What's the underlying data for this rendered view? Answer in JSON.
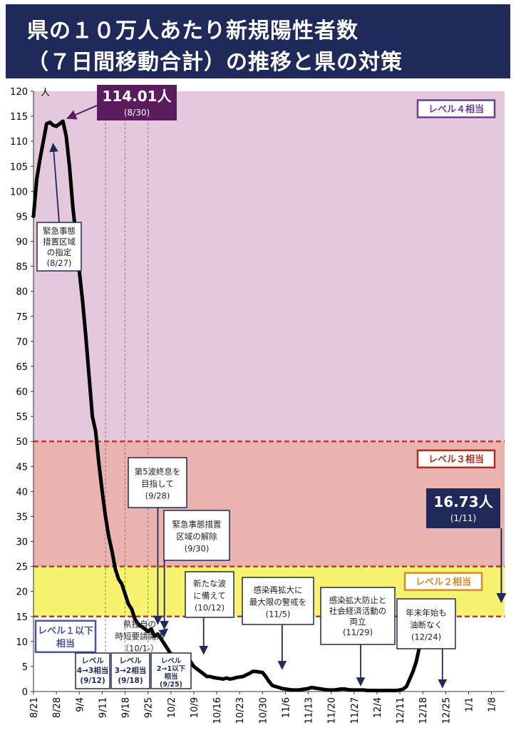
{
  "title": {
    "line1": "県の１０万人あたり新規陽性者数",
    "line2": "（７日間移動合計）の推移と県の対策"
  },
  "chart_data": {
    "type": "line",
    "y_unit": "人",
    "ylim": [
      0,
      120
    ],
    "y_ticks": [
      0,
      5,
      10,
      15,
      20,
      25,
      30,
      35,
      40,
      45,
      50,
      55,
      60,
      65,
      70,
      75,
      80,
      85,
      90,
      95,
      100,
      105,
      110,
      115,
      120
    ],
    "x_range": [
      "2021-08-21",
      "2022-01-12"
    ],
    "x_ticks": [
      {
        "date": "2021-08-21",
        "label": "8/21"
      },
      {
        "date": "2021-08-28",
        "label": "8/28"
      },
      {
        "date": "2021-09-04",
        "label": "9/4"
      },
      {
        "date": "2021-09-11",
        "label": "9/11"
      },
      {
        "date": "2021-09-18",
        "label": "9/18"
      },
      {
        "date": "2021-09-25",
        "label": "9/25"
      },
      {
        "date": "2021-10-02",
        "label": "10/2"
      },
      {
        "date": "2021-10-09",
        "label": "10/9"
      },
      {
        "date": "2021-10-16",
        "label": "10/16"
      },
      {
        "date": "2021-10-23",
        "label": "10/23"
      },
      {
        "date": "2021-10-30",
        "label": "10/30"
      },
      {
        "date": "2021-11-06",
        "label": "11/6"
      },
      {
        "date": "2021-11-13",
        "label": "11/13"
      },
      {
        "date": "2021-11-20",
        "label": "11/20"
      },
      {
        "date": "2021-11-27",
        "label": "11/27"
      },
      {
        "date": "2021-12-04",
        "label": "12/4"
      },
      {
        "date": "2021-12-11",
        "label": "12/11"
      },
      {
        "date": "2021-12-18",
        "label": "12/18"
      },
      {
        "date": "2021-12-25",
        "label": "12/25"
      },
      {
        "date": "2022-01-01",
        "label": "1/1"
      },
      {
        "date": "2022-01-08",
        "label": "1/8"
      }
    ],
    "bands": [
      {
        "label": "レベル４相当",
        "from": 50,
        "to": 120,
        "color": "#e4c9dc",
        "label_color": "#6a3d9a"
      },
      {
        "label": "レベル３相当",
        "from": 25,
        "to": 50,
        "color": "#ebb3b0",
        "label_color": "#b03020"
      },
      {
        "label": "レベル２相当",
        "from": 15,
        "to": 25,
        "color": "#f7f270",
        "label_color": "#d98a2a"
      },
      {
        "label": "レベル１以下\n相当",
        "from": 0,
        "to": 15,
        "color": "#ffffff",
        "label_color": "#4a55a8"
      }
    ],
    "threshold_color": "#c0392b",
    "series": [
      {
        "color": "#000000",
        "points": [
          [
            "2021-08-21",
            95.0
          ],
          [
            "2021-08-22",
            102.5
          ],
          [
            "2021-08-23",
            106.5
          ],
          [
            "2021-08-24",
            110.0
          ],
          [
            "2021-08-25",
            113.5
          ],
          [
            "2021-08-26",
            113.8
          ],
          [
            "2021-08-27",
            113.2
          ],
          [
            "2021-08-28",
            113.0
          ],
          [
            "2021-08-29",
            113.5
          ],
          [
            "2021-08-30",
            114.01
          ],
          [
            "2021-08-31",
            111.0
          ],
          [
            "2021-09-01",
            105.0
          ],
          [
            "2021-09-02",
            97.0
          ],
          [
            "2021-09-03",
            91.0
          ],
          [
            "2021-09-04",
            84.0
          ],
          [
            "2021-09-05",
            78.0
          ],
          [
            "2021-09-06",
            71.0
          ],
          [
            "2021-09-07",
            63.0
          ],
          [
            "2021-09-08",
            55.0
          ],
          [
            "2021-09-09",
            52.0
          ],
          [
            "2021-09-10",
            45.5
          ],
          [
            "2021-09-11",
            40.0
          ],
          [
            "2021-09-12",
            35.0
          ],
          [
            "2021-09-13",
            31.0
          ],
          [
            "2021-09-14",
            28.0
          ],
          [
            "2021-09-15",
            24.5
          ],
          [
            "2021-09-16",
            22.5
          ],
          [
            "2021-09-17",
            21.5
          ],
          [
            "2021-09-18",
            19.5
          ],
          [
            "2021-09-19",
            17.5
          ],
          [
            "2021-09-20",
            16.5
          ],
          [
            "2021-09-21",
            14.5
          ],
          [
            "2021-09-22",
            13.5
          ],
          [
            "2021-09-23",
            13.0
          ],
          [
            "2021-09-24",
            12.5
          ],
          [
            "2021-09-25",
            12.0
          ],
          [
            "2021-09-26",
            12.5
          ],
          [
            "2021-09-27",
            11.0
          ],
          [
            "2021-09-28",
            11.5
          ],
          [
            "2021-09-29",
            10.5
          ],
          [
            "2021-09-30",
            9.5
          ],
          [
            "2021-10-01",
            8.5
          ],
          [
            "2021-10-02",
            7.5
          ],
          [
            "2021-10-03",
            6.5
          ],
          [
            "2021-10-04",
            6.5
          ],
          [
            "2021-10-05",
            7.0
          ],
          [
            "2021-10-06",
            7.2
          ],
          [
            "2021-10-07",
            6.8
          ],
          [
            "2021-10-08",
            6.0
          ],
          [
            "2021-10-09",
            5.0
          ],
          [
            "2021-10-10",
            4.5
          ],
          [
            "2021-10-11",
            4.0
          ],
          [
            "2021-10-12",
            3.5
          ],
          [
            "2021-10-13",
            3.0
          ],
          [
            "2021-10-14",
            3.0
          ],
          [
            "2021-10-15",
            2.8
          ],
          [
            "2021-10-16",
            2.7
          ],
          [
            "2021-10-17",
            2.6
          ],
          [
            "2021-10-18",
            2.5
          ],
          [
            "2021-10-19",
            2.7
          ],
          [
            "2021-10-20",
            2.5
          ],
          [
            "2021-10-21",
            2.6
          ],
          [
            "2021-10-22",
            2.8
          ],
          [
            "2021-10-23",
            2.9
          ],
          [
            "2021-10-24",
            3.0
          ],
          [
            "2021-10-25",
            3.3
          ],
          [
            "2021-10-26",
            3.6
          ],
          [
            "2021-10-27",
            4.0
          ],
          [
            "2021-10-28",
            4.0
          ],
          [
            "2021-10-29",
            3.9
          ],
          [
            "2021-10-30",
            3.8
          ],
          [
            "2021-10-31",
            3.0
          ],
          [
            "2021-11-01",
            2.0
          ],
          [
            "2021-11-02",
            1.2
          ],
          [
            "2021-11-03",
            1.0
          ],
          [
            "2021-11-04",
            0.8
          ],
          [
            "2021-11-05",
            0.6
          ],
          [
            "2021-11-06",
            0.5
          ],
          [
            "2021-11-07",
            0.4
          ],
          [
            "2021-11-08",
            0.3
          ],
          [
            "2021-11-09",
            0.3
          ],
          [
            "2021-11-10",
            0.3
          ],
          [
            "2021-11-11",
            0.4
          ],
          [
            "2021-11-12",
            0.5
          ],
          [
            "2021-11-13",
            0.6
          ],
          [
            "2021-11-14",
            0.8
          ],
          [
            "2021-11-15",
            0.7
          ],
          [
            "2021-11-16",
            0.6
          ],
          [
            "2021-11-17",
            0.5
          ],
          [
            "2021-11-18",
            0.4
          ],
          [
            "2021-11-19",
            0.3
          ],
          [
            "2021-11-20",
            0.3
          ],
          [
            "2021-11-21",
            0.3
          ],
          [
            "2021-11-22",
            0.4
          ],
          [
            "2021-11-23",
            0.5
          ],
          [
            "2021-11-24",
            0.5
          ],
          [
            "2021-11-25",
            0.4
          ],
          [
            "2021-11-26",
            0.3
          ],
          [
            "2021-11-27",
            0.3
          ],
          [
            "2021-11-28",
            0.3
          ],
          [
            "2021-11-29",
            0.3
          ],
          [
            "2021-11-30",
            0.3
          ],
          [
            "2021-12-01",
            0.2
          ],
          [
            "2021-12-02",
            0.2
          ],
          [
            "2021-12-03",
            0.2
          ],
          [
            "2021-12-04",
            0.2
          ],
          [
            "2021-12-05",
            0.2
          ],
          [
            "2021-12-06",
            0.2
          ],
          [
            "2021-12-07",
            0.2
          ],
          [
            "2021-12-08",
            0.2
          ],
          [
            "2021-12-09",
            0.2
          ],
          [
            "2021-12-10",
            0.2
          ],
          [
            "2021-12-11",
            0.3
          ],
          [
            "2021-12-12",
            0.5
          ],
          [
            "2021-12-13",
            1.0
          ],
          [
            "2021-12-14",
            2.5
          ],
          [
            "2021-12-15",
            4.0
          ],
          [
            "2021-12-16",
            6.0
          ],
          [
            "2021-12-17",
            9.0
          ],
          [
            "2021-12-18",
            12.5
          ]
        ]
      }
    ],
    "peak_callouts": [
      {
        "value": "114.01人",
        "date_label": "(8/30)",
        "date": "2021-08-30",
        "y": 114.01,
        "bg": "#5a1c5c"
      },
      {
        "value": "16.73人",
        "date_label": "(1/11)",
        "date": "2022-01-11",
        "y": 16.73,
        "bg": "#1f2a5a"
      }
    ],
    "event_lines": [
      {
        "date": "2021-09-12"
      },
      {
        "date": "2021-09-18"
      },
      {
        "date": "2021-09-25"
      }
    ],
    "level_change_boxes": [
      {
        "lines": [
          "レベル",
          "4→3相当",
          "(9/12)"
        ]
      },
      {
        "lines": [
          "レベル",
          "3→2相当",
          "(9/18)"
        ]
      },
      {
        "lines": [
          "レベル",
          "2→1以下",
          "相当",
          "(9/25)"
        ]
      }
    ],
    "annotations": [
      {
        "lines": [
          "緊急事態",
          "措置区域",
          "の指定",
          "(8/27)"
        ],
        "target_date": "2021-08-27",
        "target_y": 109.5
      },
      {
        "lines": [
          "第5波終息を",
          "目指して",
          "(9/28)"
        ],
        "target_date": "2021-09-28",
        "target_y": 13.5
      },
      {
        "lines": [
          "緊急事態措置",
          "区域の解除",
          "(9/30)"
        ],
        "target_date": "2021-09-30",
        "target_y": 12.5
      },
      {
        "lines": [
          "県独自の",
          "時短要請開始",
          "（10/1-）"
        ],
        "target_date": "2021-10-01",
        "target_y": 12.5
      },
      {
        "lines": [
          "新たな波",
          "に備えて",
          "(10/12)"
        ],
        "target_date": "2021-10-12",
        "target_y": 7.5
      },
      {
        "lines": [
          "感染再拡大に",
          "最大限の警戒を",
          "(11/5)"
        ],
        "target_date": "2021-11-05",
        "target_y": 4.5
      },
      {
        "lines": [
          "感染拡大防止と",
          "社会経済活動の",
          "両立",
          "(11/29)"
        ],
        "target_date": "2021-11-29",
        "target_y": 1.2
      },
      {
        "lines": [
          "年末年始も",
          "油断なく",
          "(12/24)"
        ],
        "target_date": "2021-12-24",
        "target_y": 0.8
      }
    ]
  }
}
